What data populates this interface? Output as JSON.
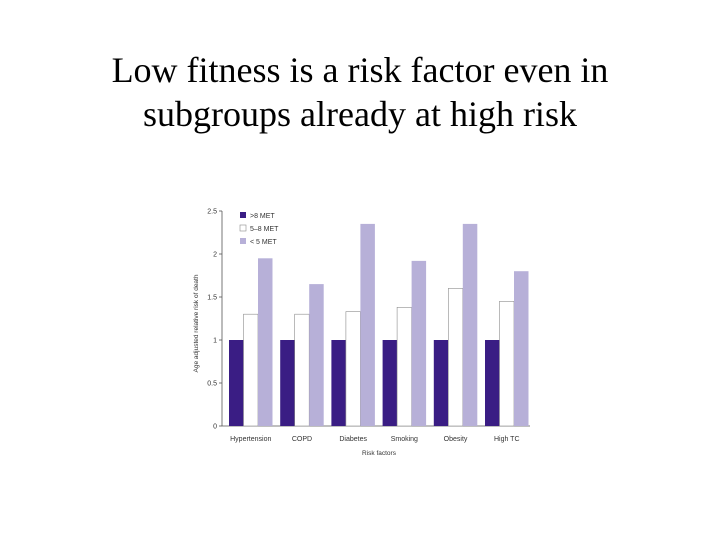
{
  "slide": {
    "title_line1": "Low fitness is a risk factor even in",
    "title_line2": "subgroups already at high risk"
  },
  "chart_data": {
    "type": "bar",
    "xlabel": "Risk factors",
    "ylabel": "Age adjusted relative risk of death",
    "ylim": [
      0,
      2.5
    ],
    "yticks": [
      0,
      0.5,
      1,
      1.5,
      2,
      2.5
    ],
    "ytick_labels": [
      "0",
      "0.5",
      "1",
      "1.5",
      "2",
      "2.5"
    ],
    "categories": [
      "Hypertension",
      "COPD",
      "Diabetes",
      "Smoking",
      "Obesity",
      "High TC"
    ],
    "legend_position": "top-left",
    "grid": false,
    "series": [
      {
        "name": ">8 MET",
        "color": "#3a1d84",
        "values": [
          1,
          1,
          1,
          1,
          1,
          1
        ]
      },
      {
        "name": "5–8 MET",
        "color": "#ffffff",
        "values": [
          1.3,
          1.3,
          1.33,
          1.38,
          1.6,
          1.45
        ]
      },
      {
        "name": "< 5 MET",
        "color": "#b7b0d8",
        "values": [
          1.95,
          1.65,
          2.35,
          1.92,
          2.35,
          1.8
        ]
      }
    ]
  }
}
